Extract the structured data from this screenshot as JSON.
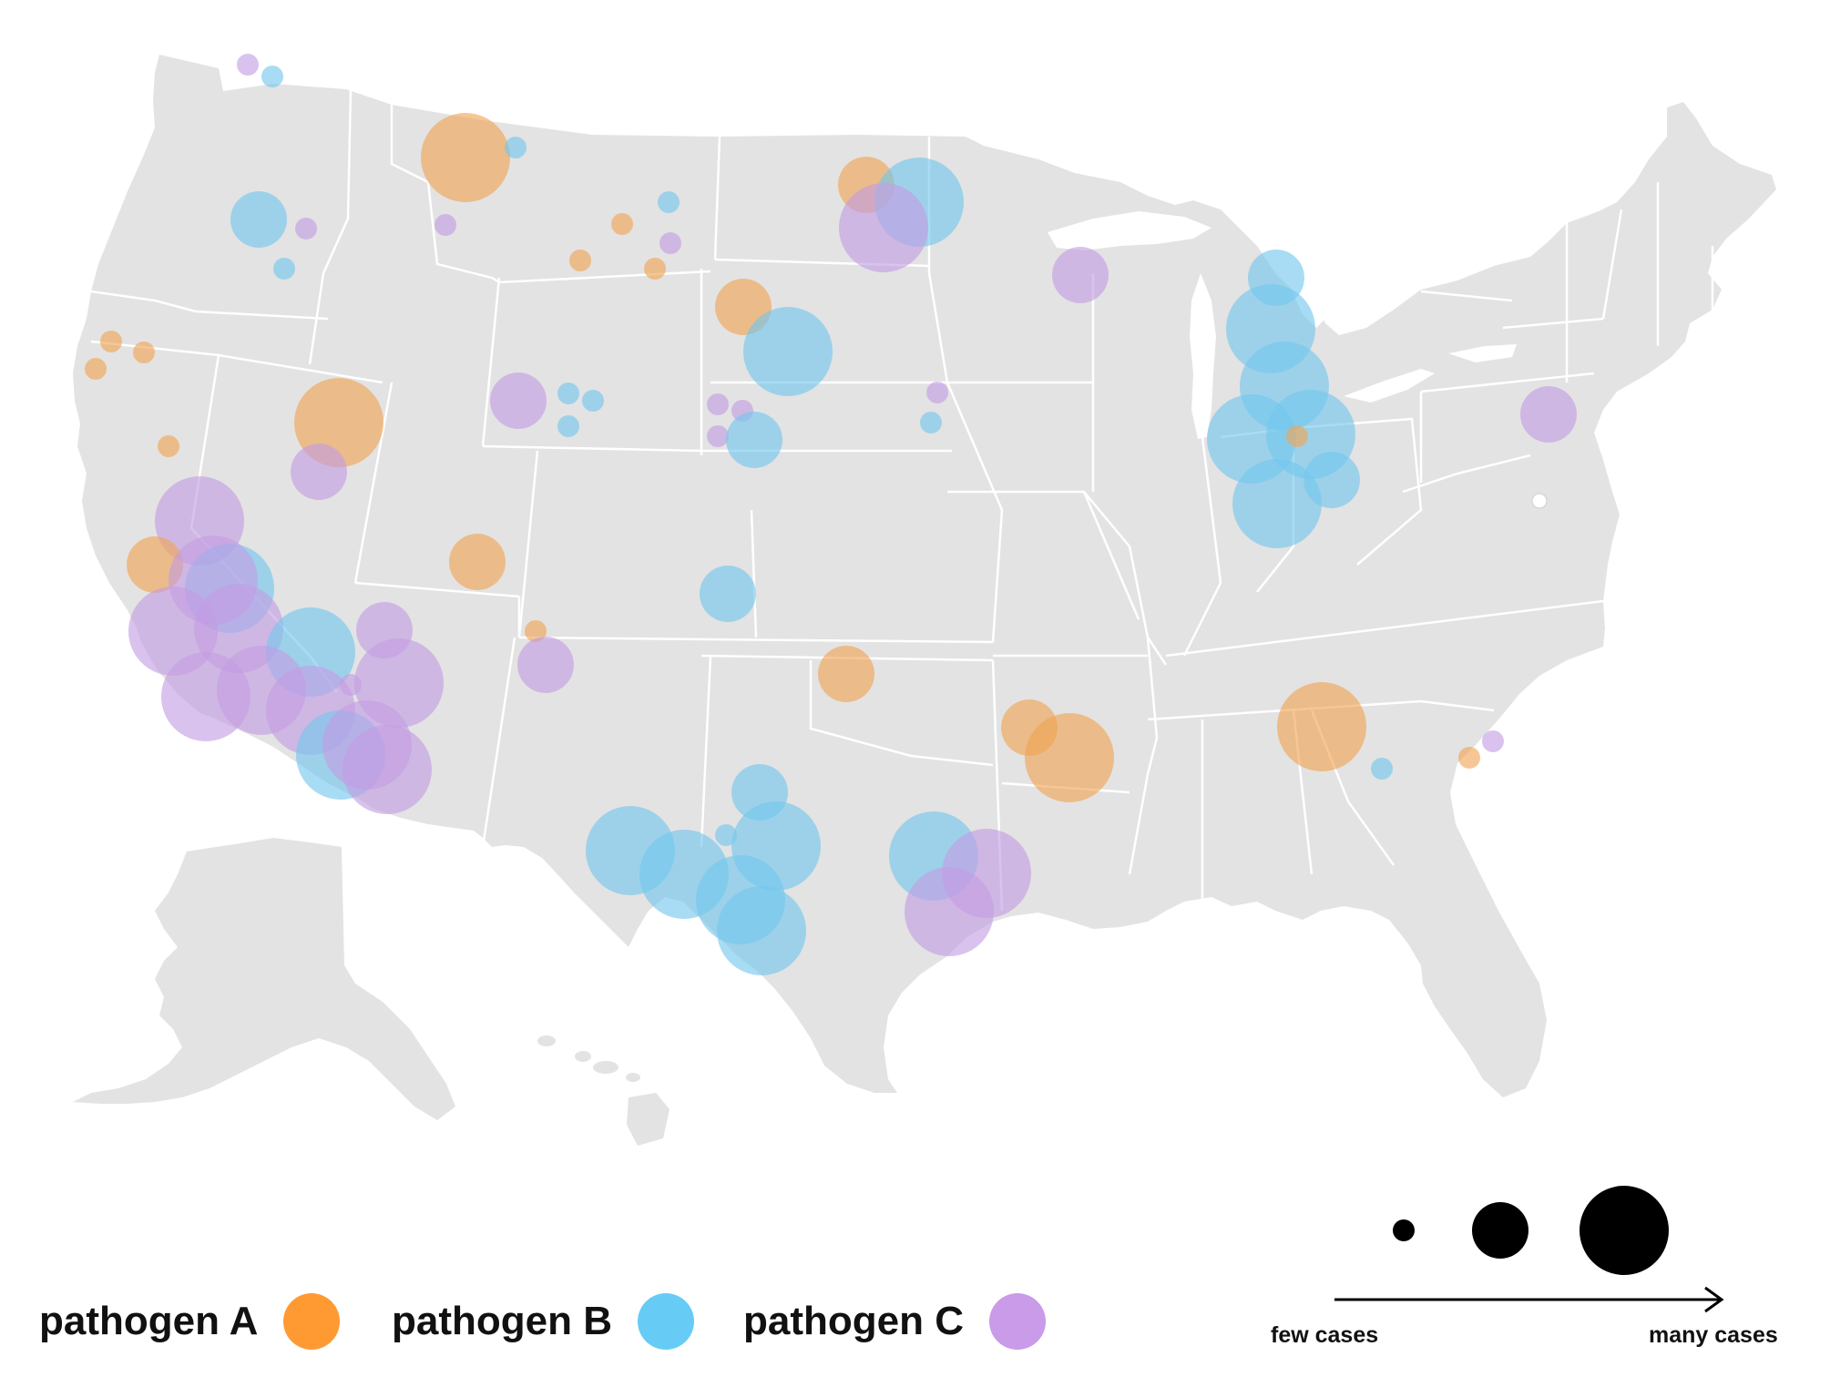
{
  "legend": {
    "items": [
      {
        "label": "pathogen A",
        "color": "#ff9a33"
      },
      {
        "label": "pathogen B",
        "color": "#66ccf5"
      },
      {
        "label": "pathogen C",
        "color": "#c99be8"
      }
    ],
    "size_scale": {
      "min_label": "few cases",
      "max_label": "many cases",
      "color": "#000000"
    }
  },
  "map": {
    "land_color": "#e3e3e3",
    "border_color": "#ffffff",
    "bubble_fill": {
      "A": "#f0a452",
      "B": "#73c7ee",
      "C": "#c39ce3"
    },
    "bubble_opacity": 0.62
  }
}
